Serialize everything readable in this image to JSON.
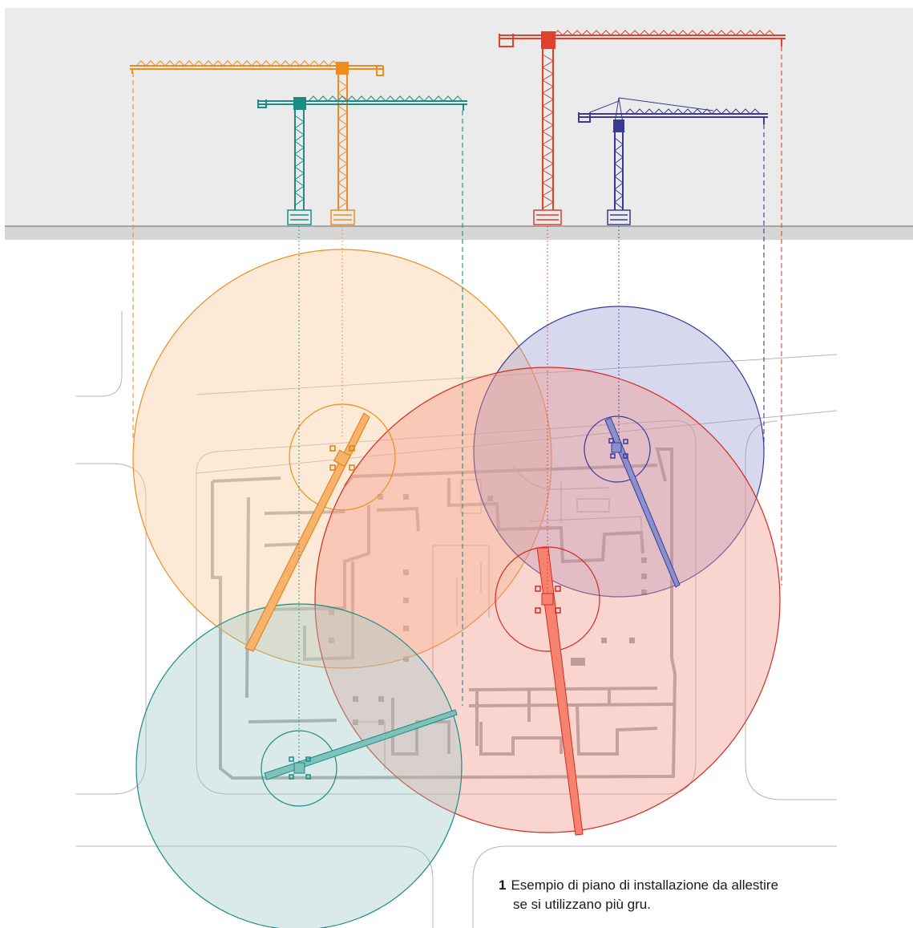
{
  "caption": {
    "number": "1",
    "line1": "Esempio di piano di installazione da allestire",
    "line2": "se si utilizzano più gru."
  },
  "colors": {
    "background_band": "#ebebeb",
    "ground_line": "#8f8f8f",
    "ground_band": "#d6d6d6",
    "plan_lines": "#b4b4b4",
    "plan_walls": "#a8a8a8",
    "orange": "#f08c1e",
    "teal": "#1a8c85",
    "red": "#e0402e",
    "blue": "#3a3a96"
  },
  "cranes": [
    {
      "name": "crane-orange",
      "color_key": "orange"
    },
    {
      "name": "crane-teal",
      "color_key": "teal"
    },
    {
      "name": "crane-red",
      "color_key": "red"
    },
    {
      "name": "crane-blue",
      "color_key": "blue"
    }
  ]
}
